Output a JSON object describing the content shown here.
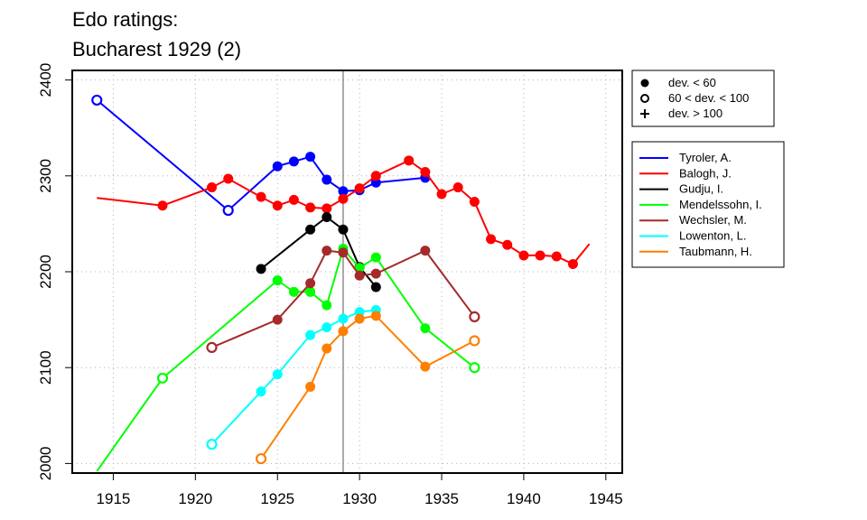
{
  "chart_data": {
    "type": "line",
    "title": "Edo ratings:",
    "subtitle": "Bucharest 1929 (2)",
    "xlabel": "",
    "ylabel": "",
    "xlim": [
      1912.5,
      1946
    ],
    "ylim": [
      1990,
      2410
    ],
    "x_ticks": [
      1915,
      1920,
      1925,
      1930,
      1935,
      1940,
      1945
    ],
    "y_ticks": [
      2000,
      2100,
      2200,
      2300,
      2400
    ],
    "grid": true,
    "reference_line_x": 1929,
    "marker_legend": [
      {
        "marker": "filled",
        "label": "dev. < 60"
      },
      {
        "marker": "open",
        "label": "60 < dev. < 100"
      },
      {
        "marker": "plus",
        "label": "dev. > 100"
      }
    ],
    "series": [
      {
        "name": "Tyroler, A.",
        "color": "#0000ff",
        "points": [
          [
            1914,
            2379,
            "open"
          ],
          [
            1922,
            2264,
            "open"
          ],
          [
            1925,
            2310,
            "filled"
          ],
          [
            1926,
            2315,
            "filled"
          ],
          [
            1927,
            2320,
            "filled"
          ],
          [
            1928,
            2296,
            "filled"
          ],
          [
            1929,
            2284,
            "filled"
          ],
          [
            1930,
            2285,
            "filled"
          ],
          [
            1931,
            2293,
            "filled"
          ],
          [
            1934,
            2298,
            "filled"
          ]
        ]
      },
      {
        "name": "Balogh, J.",
        "color": "#ff0000",
        "points": [
          [
            1914,
            2277,
            "none"
          ],
          [
            1918,
            2269,
            "filled"
          ],
          [
            1921,
            2288,
            "filled"
          ],
          [
            1922,
            2297,
            "filled"
          ],
          [
            1924,
            2278,
            "filled"
          ],
          [
            1925,
            2269,
            "filled"
          ],
          [
            1926,
            2275,
            "filled"
          ],
          [
            1927,
            2267,
            "filled"
          ],
          [
            1928,
            2266,
            "filled"
          ],
          [
            1929,
            2276,
            "filled"
          ],
          [
            1930,
            2287,
            "filled"
          ],
          [
            1931,
            2300,
            "filled"
          ],
          [
            1933,
            2316,
            "filled"
          ],
          [
            1934,
            2304,
            "filled"
          ],
          [
            1935,
            2281,
            "filled"
          ],
          [
            1936,
            2288,
            "filled"
          ],
          [
            1937,
            2273,
            "filled"
          ],
          [
            1938,
            2234,
            "filled"
          ],
          [
            1939,
            2228,
            "filled"
          ],
          [
            1940,
            2217,
            "filled"
          ],
          [
            1941,
            2217,
            "filled"
          ],
          [
            1942,
            2216,
            "filled"
          ],
          [
            1943,
            2208,
            "filled"
          ],
          [
            1944,
            2229,
            "none"
          ]
        ]
      },
      {
        "name": "Gudju, I.",
        "color": "#000000",
        "points": [
          [
            1924,
            2203,
            "filled"
          ],
          [
            1927,
            2244,
            "filled"
          ],
          [
            1928,
            2257,
            "filled"
          ],
          [
            1929,
            2244,
            "filled"
          ],
          [
            1930,
            2205,
            "filled"
          ],
          [
            1931,
            2184,
            "filled"
          ]
        ]
      },
      {
        "name": "Mendelssohn, I.",
        "color": "#00ff00",
        "points": [
          [
            1914,
            1992,
            "none"
          ],
          [
            1918,
            2089,
            "open"
          ],
          [
            1925,
            2191,
            "filled"
          ],
          [
            1926,
            2179,
            "filled"
          ],
          [
            1927,
            2179,
            "filled"
          ],
          [
            1928,
            2165,
            "filled"
          ],
          [
            1929,
            2224,
            "filled"
          ],
          [
            1930,
            2204,
            "filled"
          ],
          [
            1931,
            2215,
            "filled"
          ],
          [
            1934,
            2141,
            "filled"
          ],
          [
            1937,
            2100,
            "open"
          ]
        ]
      },
      {
        "name": "Wechsler, M.",
        "color": "#a52a2a",
        "points": [
          [
            1921,
            2121,
            "open"
          ],
          [
            1925,
            2150,
            "filled"
          ],
          [
            1927,
            2188,
            "filled"
          ],
          [
            1928,
            2222,
            "filled"
          ],
          [
            1929,
            2220,
            "filled"
          ],
          [
            1930,
            2196,
            "filled"
          ],
          [
            1931,
            2198,
            "filled"
          ],
          [
            1934,
            2222,
            "filled"
          ],
          [
            1937,
            2153,
            "open"
          ]
        ]
      },
      {
        "name": "Lowenton, L.",
        "color": "#00ffff",
        "points": [
          [
            1921,
            2020,
            "open"
          ],
          [
            1924,
            2075,
            "filled"
          ],
          [
            1925,
            2093,
            "filled"
          ],
          [
            1927,
            2134,
            "filled"
          ],
          [
            1928,
            2142,
            "filled"
          ],
          [
            1929,
            2151,
            "filled"
          ],
          [
            1930,
            2158,
            "filled"
          ],
          [
            1931,
            2160,
            "filled"
          ]
        ]
      },
      {
        "name": "Taubmann, H.",
        "color": "#ff7f00",
        "points": [
          [
            1924,
            2005,
            "open"
          ],
          [
            1927,
            2080,
            "filled"
          ],
          [
            1928,
            2120,
            "filled"
          ],
          [
            1929,
            2138,
            "filled"
          ],
          [
            1930,
            2151,
            "filled"
          ],
          [
            1931,
            2154,
            "filled"
          ],
          [
            1934,
            2101,
            "filled"
          ],
          [
            1937,
            2128,
            "open"
          ]
        ]
      }
    ]
  }
}
